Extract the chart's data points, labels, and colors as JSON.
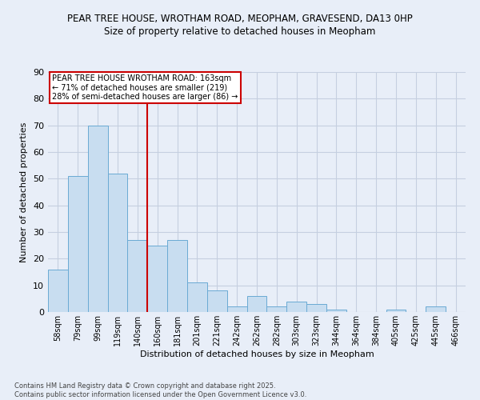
{
  "title_line1": "PEAR TREE HOUSE, WROTHAM ROAD, MEOPHAM, GRAVESEND, DA13 0HP",
  "title_line2": "Size of property relative to detached houses in Meopham",
  "xlabel": "Distribution of detached houses by size in Meopham",
  "ylabel": "Number of detached properties",
  "categories": [
    "58sqm",
    "79sqm",
    "99sqm",
    "119sqm",
    "140sqm",
    "160sqm",
    "181sqm",
    "201sqm",
    "221sqm",
    "242sqm",
    "262sqm",
    "282sqm",
    "303sqm",
    "323sqm",
    "344sqm",
    "364sqm",
    "384sqm",
    "405sqm",
    "425sqm",
    "445sqm",
    "466sqm"
  ],
  "values": [
    16,
    51,
    70,
    52,
    27,
    25,
    27,
    11,
    8,
    2,
    6,
    2,
    4,
    3,
    1,
    0,
    0,
    1,
    0,
    2,
    0
  ],
  "bar_color": "#c8ddf0",
  "bar_edge_color": "#6aaad4",
  "background_color": "#e8eef8",
  "grid_color": "#c5cfe0",
  "vline_pos": 5,
  "vline_color": "#cc0000",
  "annotation_text": "PEAR TREE HOUSE WROTHAM ROAD: 163sqm\n← 71% of detached houses are smaller (219)\n28% of semi-detached houses are larger (86) →",
  "annotation_box_color": "#cc0000",
  "ylim": [
    0,
    90
  ],
  "yticks": [
    0,
    10,
    20,
    30,
    40,
    50,
    60,
    70,
    80,
    90
  ],
  "footnote": "Contains HM Land Registry data © Crown copyright and database right 2025.\nContains public sector information licensed under the Open Government Licence v3.0."
}
